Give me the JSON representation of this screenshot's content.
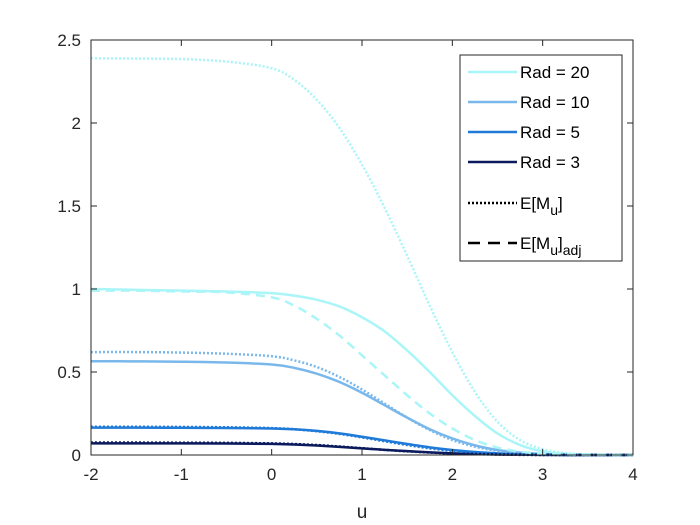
{
  "chart_data": {
    "type": "line",
    "xlabel": "u",
    "ylabel": "",
    "xlim": [
      -2,
      4
    ],
    "ylim": [
      0,
      2.5
    ],
    "xticks": [
      -2,
      -1,
      0,
      1,
      2,
      3,
      4
    ],
    "yticks": [
      0,
      0.5,
      1,
      1.5,
      2,
      2.5
    ],
    "x": [
      -2,
      -1.5,
      -1,
      -0.5,
      0,
      0.25,
      0.5,
      0.75,
      1,
      1.25,
      1.5,
      1.75,
      2,
      2.25,
      2.5,
      2.75,
      3,
      3.25,
      3.5,
      4
    ],
    "legend_position": "top-right",
    "series": [
      {
        "name": "Rad = 20",
        "color": "#aaf5f8",
        "style": "solid",
        "values": [
          1.0,
          0.995,
          0.99,
          0.985,
          0.975,
          0.96,
          0.935,
          0.895,
          0.83,
          0.745,
          0.63,
          0.5,
          0.36,
          0.235,
          0.13,
          0.06,
          0.022,
          0.007,
          0.002,
          0.0
        ]
      },
      {
        "name": "Rad = 10",
        "color": "#7ab8ec",
        "style": "solid",
        "values": [
          0.565,
          0.564,
          0.562,
          0.557,
          0.545,
          0.525,
          0.49,
          0.44,
          0.375,
          0.3,
          0.225,
          0.155,
          0.1,
          0.058,
          0.03,
          0.014,
          0.006,
          0.002,
          0.0,
          0.0
        ]
      },
      {
        "name": "Rad = 5",
        "color": "#1f7ad8",
        "style": "solid",
        "values": [
          0.165,
          0.165,
          0.164,
          0.163,
          0.16,
          0.155,
          0.145,
          0.13,
          0.11,
          0.088,
          0.066,
          0.046,
          0.03,
          0.018,
          0.01,
          0.005,
          0.002,
          0.001,
          0.0,
          0.0
        ]
      },
      {
        "name": "Rad = 3",
        "color": "#0a1a5c",
        "style": "solid",
        "values": [
          0.07,
          0.07,
          0.07,
          0.069,
          0.067,
          0.063,
          0.057,
          0.049,
          0.04,
          0.031,
          0.023,
          0.016,
          0.01,
          0.006,
          0.003,
          0.002,
          0.001,
          0.0,
          0.0,
          0.0
        ]
      },
      {
        "name": "",
        "color": "#aaf5f8",
        "style": "dotted",
        "values": [
          2.39,
          2.388,
          2.385,
          2.37,
          2.33,
          2.26,
          2.14,
          1.97,
          1.75,
          1.49,
          1.2,
          0.9,
          0.62,
          0.38,
          0.2,
          0.09,
          0.035,
          0.012,
          0.004,
          0.0
        ]
      },
      {
        "name": "",
        "color": "#7ab8ec",
        "style": "dotted",
        "values": [
          0.62,
          0.62,
          0.617,
          0.61,
          0.595,
          0.57,
          0.53,
          0.47,
          0.395,
          0.31,
          0.225,
          0.15,
          0.09,
          0.05,
          0.025,
          0.011,
          0.004,
          0.001,
          0.0,
          0.0
        ]
      },
      {
        "name": "",
        "color": "#1f7ad8",
        "style": "dotted",
        "values": [
          0.17,
          0.17,
          0.169,
          0.167,
          0.162,
          0.155,
          0.143,
          0.127,
          0.106,
          0.083,
          0.06,
          0.04,
          0.025,
          0.014,
          0.007,
          0.003,
          0.001,
          0.0,
          0.0,
          0.0
        ]
      },
      {
        "name": "",
        "color": "#0a1a5c",
        "style": "dotted",
        "values": [
          0.075,
          0.075,
          0.074,
          0.073,
          0.07,
          0.066,
          0.06,
          0.051,
          0.041,
          0.031,
          0.022,
          0.015,
          0.009,
          0.005,
          0.003,
          0.001,
          0.0,
          0.0,
          0.0,
          0.0
        ]
      },
      {
        "name": "",
        "color": "#aaf5f8",
        "style": "dashed",
        "values": [
          0.99,
          0.99,
          0.985,
          0.98,
          0.95,
          0.9,
          0.82,
          0.72,
          0.6,
          0.48,
          0.36,
          0.25,
          0.16,
          0.09,
          0.045,
          0.02,
          0.008,
          0.003,
          0.001,
          0.0
        ]
      }
    ],
    "legend": [
      {
        "label": "Rad = 20",
        "color": "#aaf5f8",
        "style": "solid"
      },
      {
        "label": "Rad = 10",
        "color": "#7ab8ec",
        "style": "solid"
      },
      {
        "label": "Rad = 5",
        "color": "#1f7ad8",
        "style": "solid"
      },
      {
        "label": "Rad = 3",
        "color": "#0a1a5c",
        "style": "solid"
      },
      {
        "label": "E[M",
        "sub": "u",
        "after": "]",
        "sub2": "",
        "color": "#000000",
        "style": "dotted"
      },
      {
        "label": "E[M",
        "sub": "u",
        "after": "]",
        "sub2": "adj",
        "color": "#000000",
        "style": "dashed"
      }
    ]
  }
}
